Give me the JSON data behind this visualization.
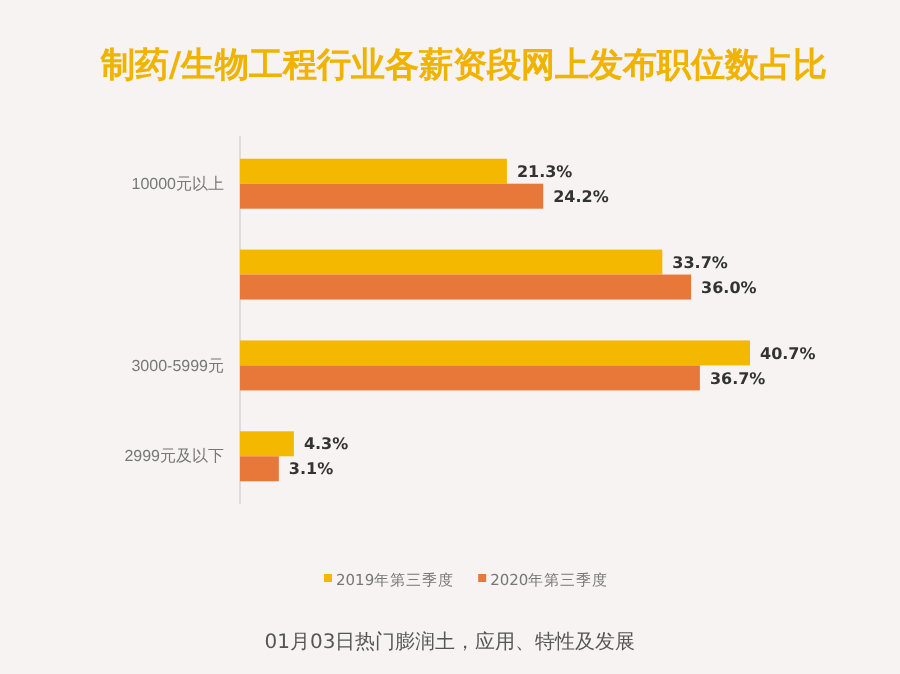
{
  "chart_data": {
    "type": "bar",
    "orientation": "horizontal",
    "title": "制药/生物工程行业各薪资段网上发布职位数占比",
    "categories": [
      "10000元以上",
      null,
      "3000-5999元",
      "2999元及以下"
    ],
    "series": [
      {
        "name": "2019年第三季度",
        "color": "#f5b800",
        "values": [
          21.3,
          33.7,
          40.7,
          4.3
        ],
        "value_labels": [
          "21.3%",
          "33.7%",
          "40.7%",
          "4.3%"
        ]
      },
      {
        "name": "2020年第三季度",
        "color": "#e8773a",
        "values": [
          24.2,
          36.0,
          36.7,
          3.1
        ],
        "value_labels": [
          "24.2%",
          "36.0%",
          "36.7%",
          "3.1%"
        ]
      }
    ],
    "tick_labels": "y",
    "legend": "bottom",
    "annotations": [
      "01月03日热门膨润土，应用、特性及发展"
    ]
  }
}
